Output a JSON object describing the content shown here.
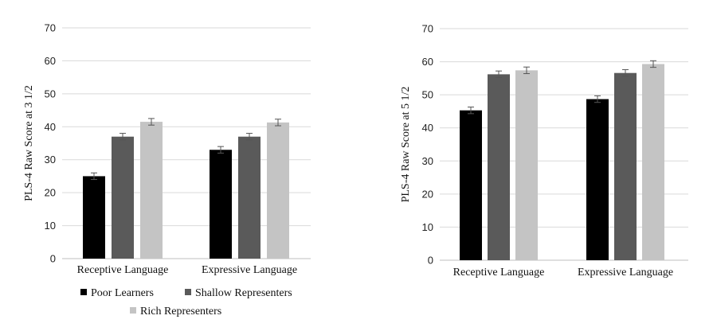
{
  "colors": {
    "series": [
      "#000000",
      "#5a5a5a",
      "#c4c4c4"
    ],
    "grid": "#d9d9d9",
    "axis": "#bfbfbf",
    "errorbar": "#555555"
  },
  "legend": {
    "placement": "bottom",
    "entries": [
      "Poor Learners",
      "Shallow Representers",
      "Rich Representers"
    ]
  },
  "chart_data": [
    {
      "type": "bar",
      "ylabel": "PLS-4 Raw Score at 3 1/2",
      "ylim": [
        0,
        70
      ],
      "yticks": [
        "0",
        "10",
        "20",
        "30",
        "40",
        "50",
        "60",
        "70"
      ],
      "grid": true,
      "categories": [
        "Receptive Language",
        "Expressive Language"
      ],
      "series": [
        {
          "name": "Poor Learners",
          "values": [
            25,
            33
          ],
          "error": [
            1,
            1
          ]
        },
        {
          "name": "Shallow Representers",
          "values": [
            37,
            37
          ],
          "error": [
            1,
            1
          ]
        },
        {
          "name": "Rich Representers",
          "values": [
            41.5,
            41.3
          ],
          "error": [
            1,
            1
          ]
        }
      ]
    },
    {
      "type": "bar",
      "ylabel": "PLS-4 Raw Score at 5 1/2",
      "ylim": [
        0,
        70
      ],
      "yticks": [
        "0",
        "10",
        "20",
        "30",
        "40",
        "50",
        "60",
        "70"
      ],
      "grid": true,
      "categories": [
        "Receptive Language",
        "Expressive Language"
      ],
      "series": [
        {
          "name": "Poor Learners",
          "values": [
            45.3,
            48.7
          ],
          "error": [
            1,
            1
          ]
        },
        {
          "name": "Shallow Representers",
          "values": [
            56.2,
            56.6
          ],
          "error": [
            1,
            1
          ]
        },
        {
          "name": "Rich Representers",
          "values": [
            57.4,
            59.3
          ],
          "error": [
            1,
            1
          ]
        }
      ]
    }
  ]
}
